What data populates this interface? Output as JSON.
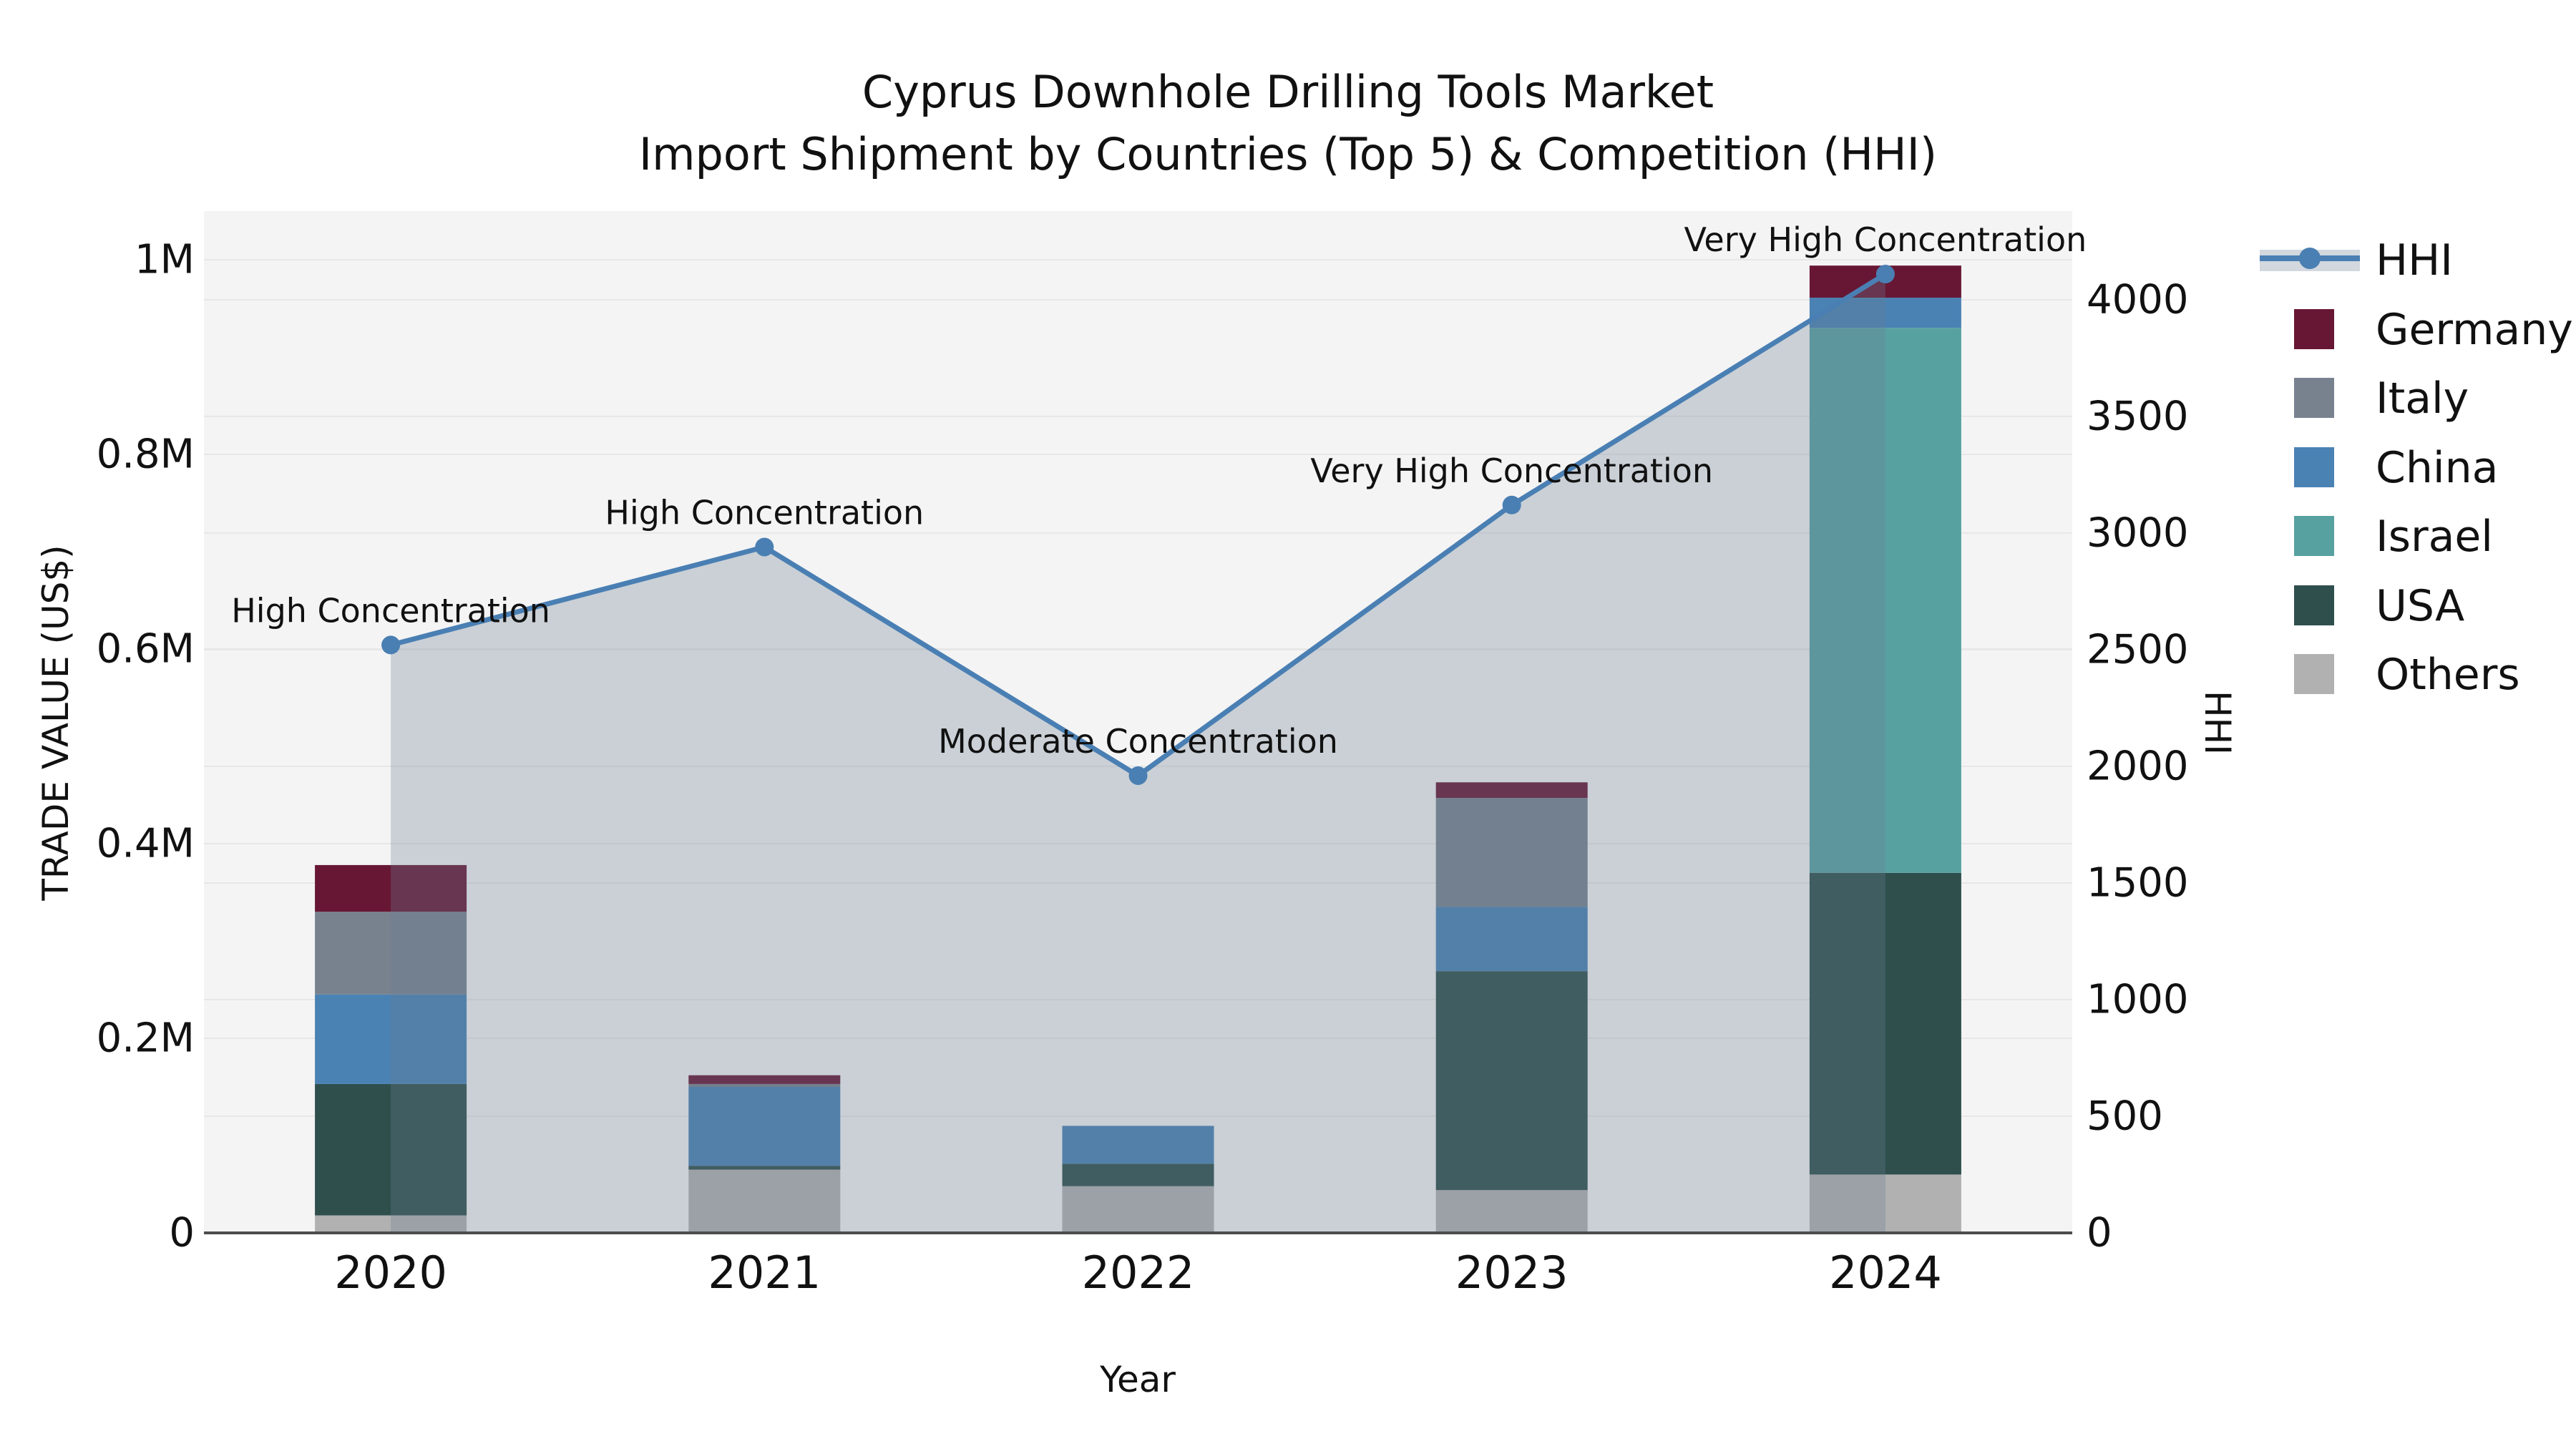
{
  "title": {
    "line1": "Cyprus Downhole Drilling Tools Market",
    "line2": "Import Shipment by Countries (Top 5) & Competition (HHI)"
  },
  "axes": {
    "x_label": "Year",
    "y_left_label": "TRADE VALUE (US$)",
    "y_right_label": "HHI"
  },
  "legend": {
    "items": [
      {
        "label": "HHI",
        "type": "line",
        "color": "#4a7fb3"
      },
      {
        "label": "Germany",
        "type": "swatch",
        "color": "#671734"
      },
      {
        "label": "Italy",
        "type": "swatch",
        "color": "#78828f"
      },
      {
        "label": "China",
        "type": "swatch",
        "color": "#4a82b4"
      },
      {
        "label": "Israel",
        "type": "swatch",
        "color": "#58a1a1"
      },
      {
        "label": "USA",
        "type": "swatch",
        "color": "#2f4f4d"
      },
      {
        "label": "Others",
        "type": "swatch",
        "color": "#b1b1b1"
      }
    ]
  },
  "chart_data": {
    "type": "combo-stacked-bar-and-line",
    "categories": [
      "2020",
      "2021",
      "2022",
      "2023",
      "2024"
    ],
    "bar_value_unit": "US$ (millions)",
    "series": [
      {
        "name": "Germany",
        "color": "#671734",
        "values": [
          0.048,
          0.009,
          0,
          0.016,
          0.033
        ]
      },
      {
        "name": "Italy",
        "color": "#78828f",
        "values": [
          0.085,
          0.003,
          0,
          0.112,
          0
        ]
      },
      {
        "name": "China",
        "color": "#4a82b4",
        "values": [
          0.092,
          0.081,
          0.039,
          0.066,
          0.031
        ]
      },
      {
        "name": "Israel",
        "color": "#58a1a1",
        "values": [
          0,
          0,
          0,
          0,
          0.56
        ]
      },
      {
        "name": "USA",
        "color": "#2f4f4d",
        "values": [
          0.135,
          0.004,
          0.023,
          0.225,
          0.31
        ]
      },
      {
        "name": "Others",
        "color": "#b1b1b1",
        "values": [
          0.018,
          0.065,
          0.048,
          0.044,
          0.06
        ]
      }
    ],
    "stack_order_bottom_to_top": [
      "Others",
      "USA",
      "Israel",
      "China",
      "Italy",
      "Germany"
    ],
    "line_series": {
      "name": "HHI",
      "color": "#4a7fb3",
      "area_fill": "rgba(105,125,145,0.30)",
      "values": [
        2520,
        2940,
        1960,
        3120,
        4110
      ]
    },
    "annotations": [
      {
        "category": "2020",
        "text": "High Concentration"
      },
      {
        "category": "2021",
        "text": "High Concentration"
      },
      {
        "category": "2022",
        "text": "Moderate Concentration"
      },
      {
        "category": "2023",
        "text": "Very High Concentration"
      },
      {
        "category": "2024",
        "text": "Very High Concentration"
      }
    ],
    "y_left": {
      "label": "TRADE VALUE (US$)",
      "tick_labels": [
        "0",
        "0.2M",
        "0.4M",
        "0.6M",
        "0.8M",
        "1M"
      ],
      "tick_values": [
        0,
        0.2,
        0.4,
        0.6,
        0.8,
        1.0
      ],
      "axis_max": 1.05,
      "grid": true
    },
    "y_right": {
      "label": "HHI",
      "tick_labels": [
        "0",
        "500",
        "1000",
        "1500",
        "2000",
        "2500",
        "3000",
        "3500",
        "4000"
      ],
      "tick_values": [
        0,
        500,
        1000,
        1500,
        2000,
        2500,
        3000,
        3500,
        4000
      ],
      "axis_max": 4380,
      "grid": true
    },
    "xlabel": "Year",
    "legend_position": "upper-right-outside"
  },
  "colors": {
    "figure_background": "#ffffff",
    "plot_background": "#f4f4f4",
    "gridline": "#e7e7e7",
    "spine": "#4d4d4d",
    "text": "#111111"
  }
}
